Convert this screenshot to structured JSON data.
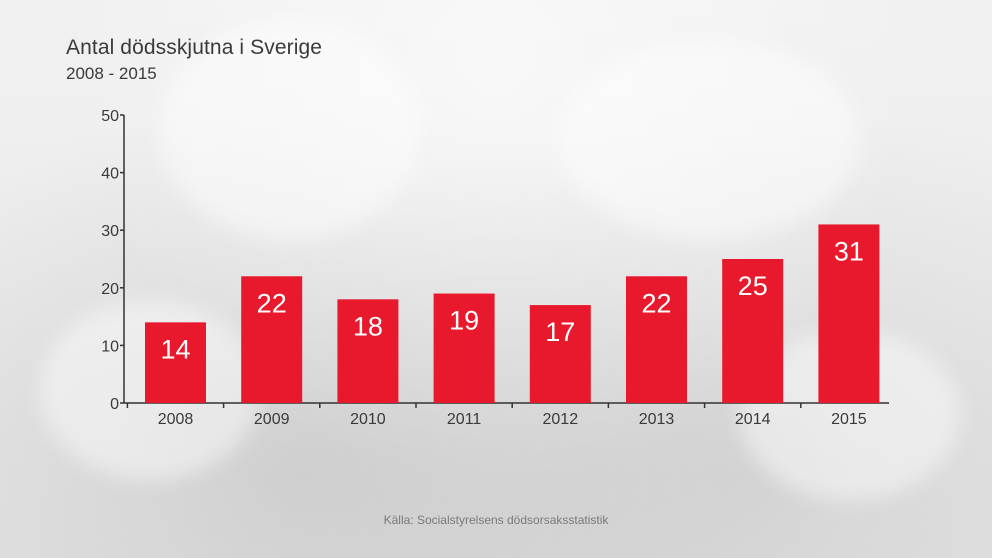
{
  "chart_data": {
    "type": "bar",
    "title": "Antal dödsskjutna i Sverige",
    "subtitle": "2008 - 2015",
    "categories": [
      "2008",
      "2009",
      "2010",
      "2011",
      "2012",
      "2013",
      "2014",
      "2015"
    ],
    "values": [
      14,
      22,
      18,
      19,
      17,
      22,
      25,
      31
    ],
    "ylim": [
      0,
      50
    ],
    "yticks": [
      0,
      10,
      20,
      30,
      40,
      50
    ],
    "xlabel": "",
    "ylabel": "",
    "grid": false,
    "legend": "none",
    "data_labels": true,
    "source": "Källa: Socialstyrelsens dödsorsaksstatistik",
    "colors": {
      "bar": "#e8192c",
      "axis": "#333333",
      "label": "#ffffff",
      "text": "#3a3a3a"
    }
  }
}
